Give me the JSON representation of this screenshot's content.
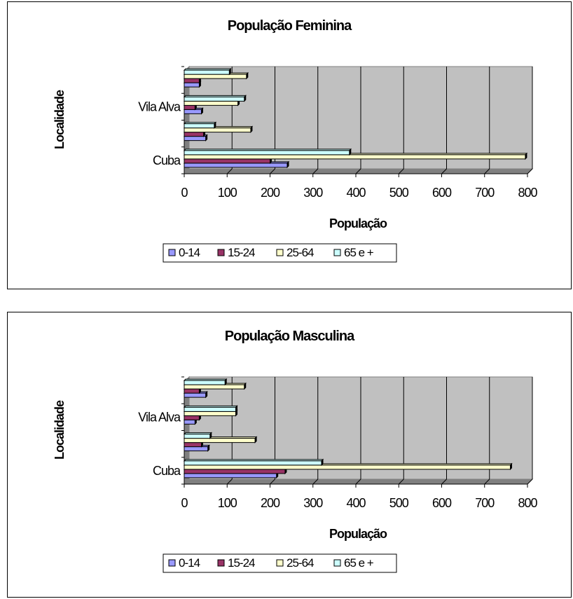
{
  "chart_data": [
    {
      "type": "bar",
      "orientation": "horizontal",
      "title": "População Feminina",
      "xlabel": "População",
      "ylabel": "Localidade",
      "xlim": [
        0,
        800
      ],
      "xticks": [
        0,
        100,
        200,
        300,
        400,
        500,
        600,
        700,
        800
      ],
      "categories": [
        "Cuba",
        "",
        "Vila Alva",
        ""
      ],
      "series": [
        {
          "name": "0-14",
          "color": "#9999ff",
          "values": [
            240,
            50,
            40,
            35
          ]
        },
        {
          "name": "15-24",
          "color": "#993366",
          "values": [
            200,
            45,
            25,
            35
          ]
        },
        {
          "name": "25-64",
          "color": "#ffffcc",
          "values": [
            795,
            155,
            125,
            145
          ]
        },
        {
          "name": "65 e +",
          "color": "#ccffff",
          "values": [
            385,
            70,
            140,
            105
          ]
        }
      ],
      "grid": "vertical",
      "plot_background": "#c0c0c0",
      "legend_position": "bottom"
    },
    {
      "type": "bar",
      "orientation": "horizontal",
      "title": "População Masculina",
      "xlabel": "População",
      "ylabel": "Localidade",
      "xlim": [
        0,
        800
      ],
      "xticks": [
        0,
        100,
        200,
        300,
        400,
        500,
        600,
        700,
        800
      ],
      "categories": [
        "Cuba",
        "",
        "Vila Alva",
        ""
      ],
      "series": [
        {
          "name": "0-14",
          "color": "#9999ff",
          "values": [
            215,
            55,
            25,
            50
          ]
        },
        {
          "name": "15-24",
          "color": "#993366",
          "values": [
            235,
            40,
            35,
            35
          ]
        },
        {
          "name": "25-64",
          "color": "#ffffcc",
          "values": [
            760,
            165,
            120,
            140
          ]
        },
        {
          "name": "65 e +",
          "color": "#ccffff",
          "values": [
            320,
            60,
            120,
            95
          ]
        }
      ],
      "grid": "vertical",
      "plot_background": "#c0c0c0",
      "legend_position": "bottom"
    }
  ]
}
